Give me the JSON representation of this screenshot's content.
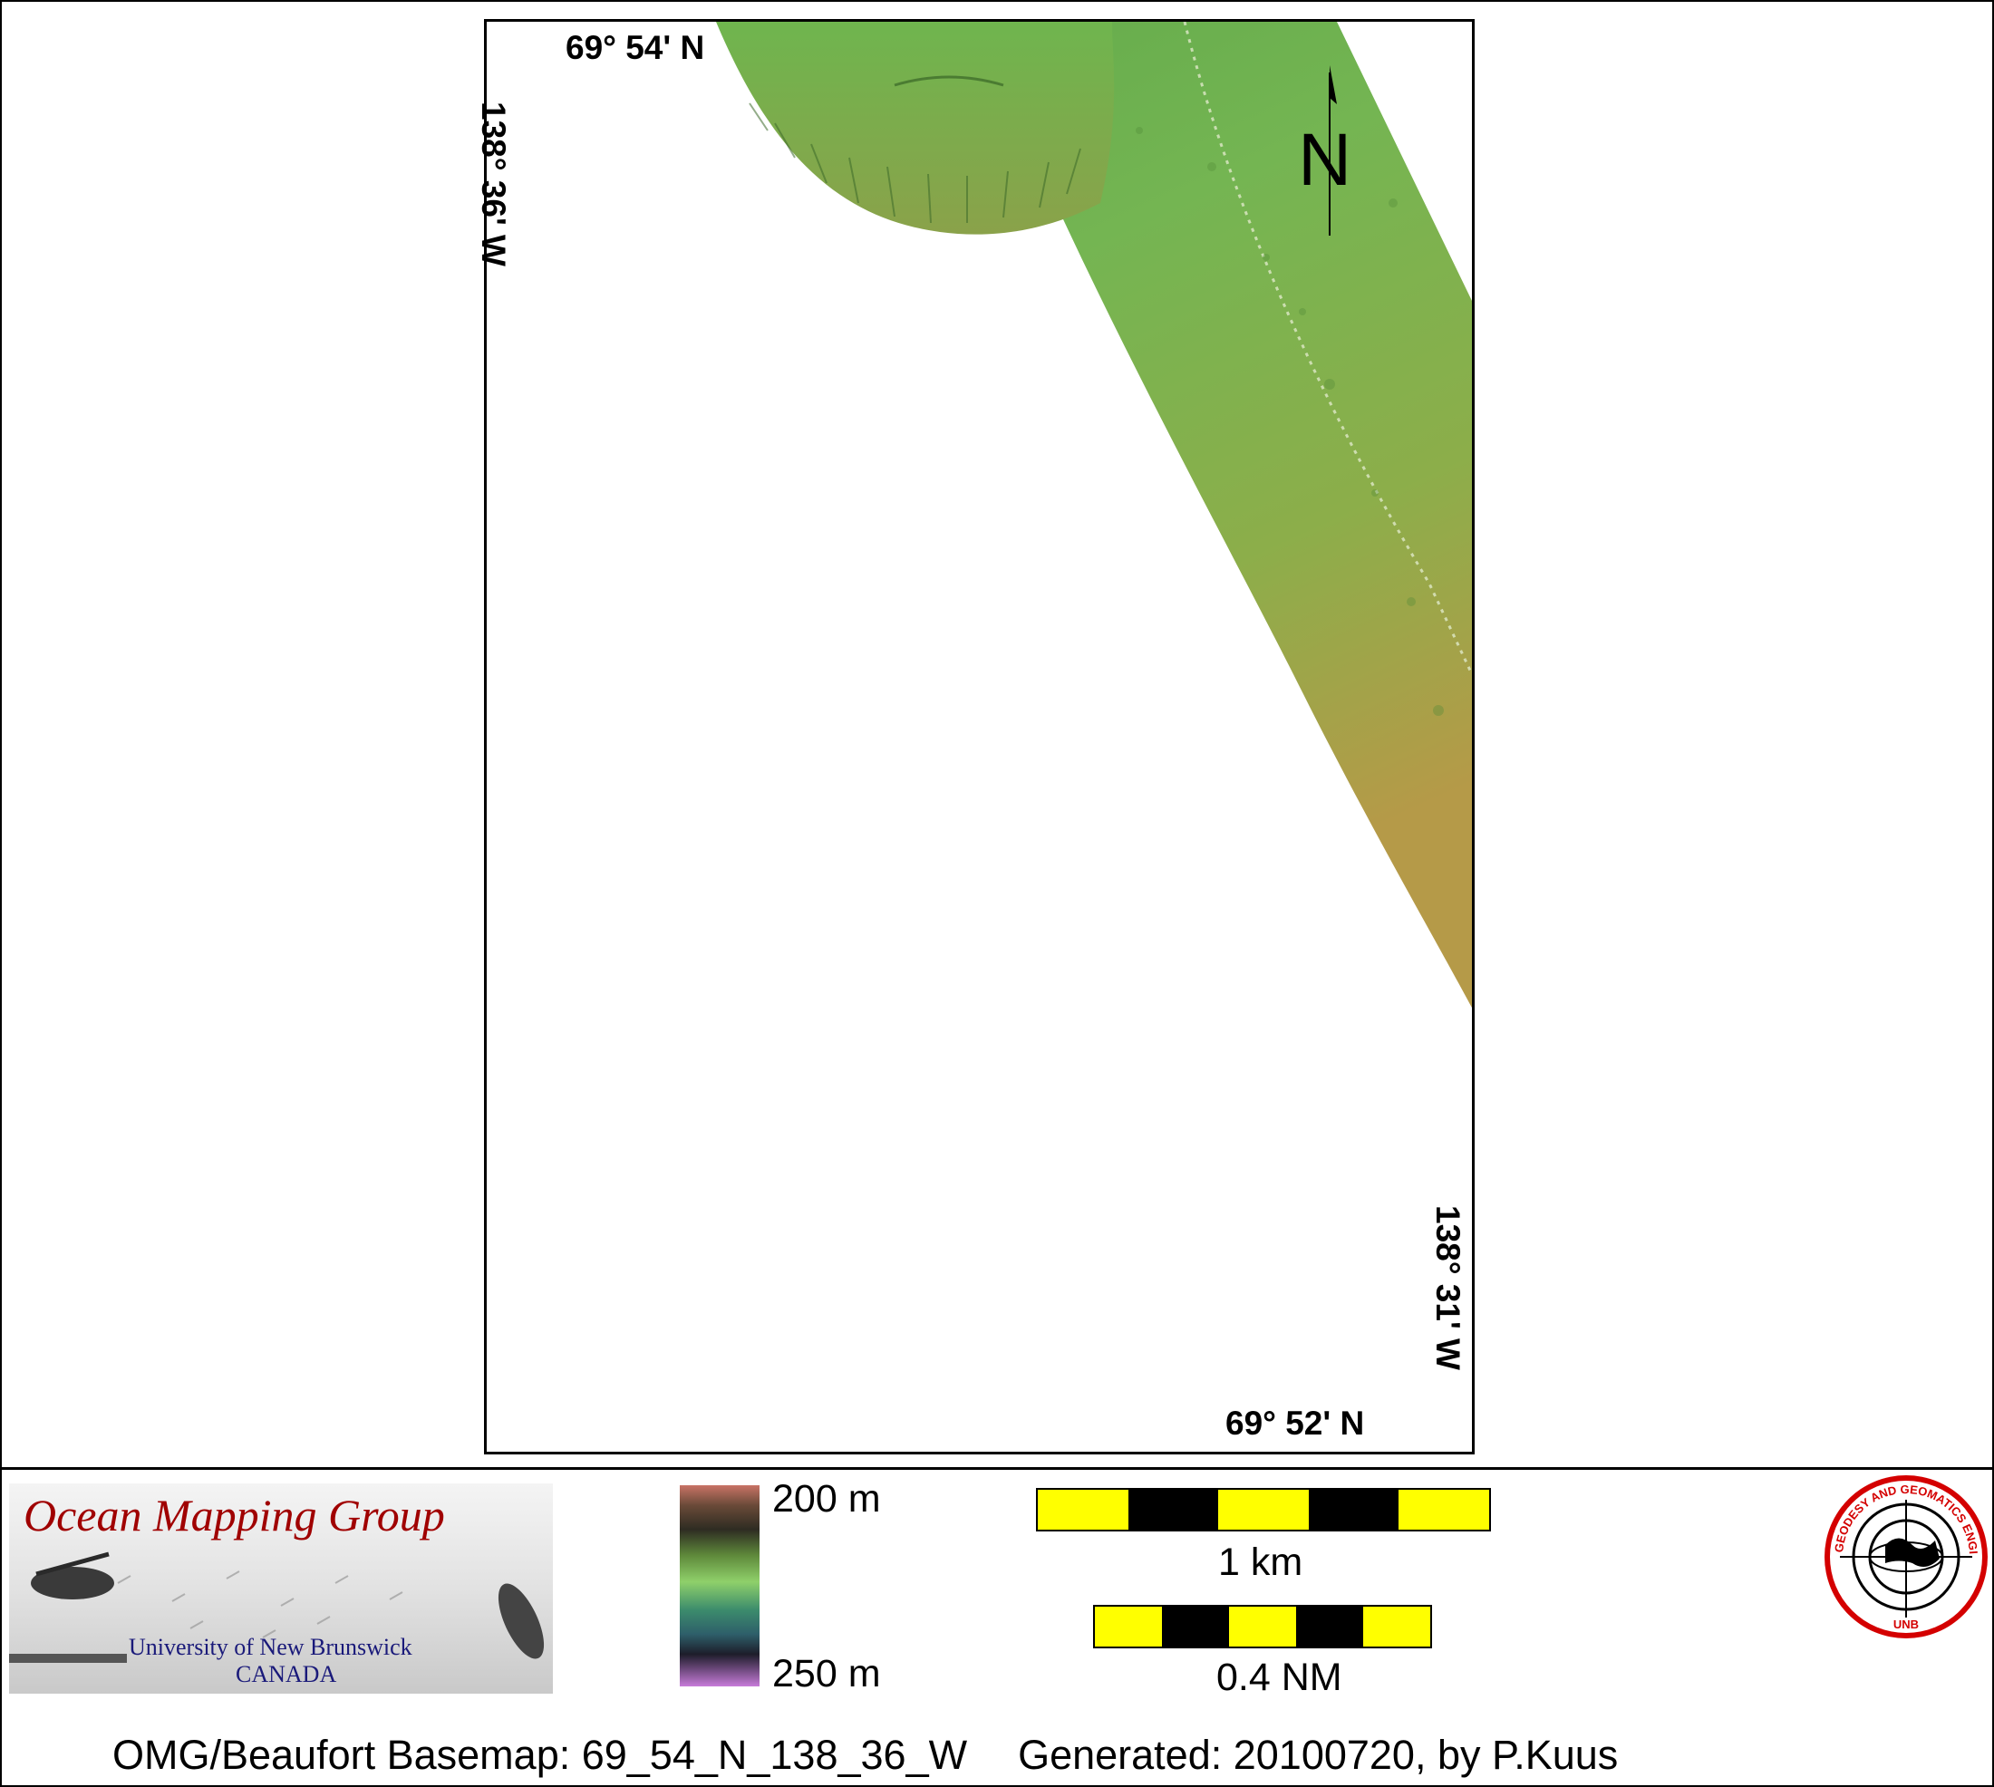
{
  "map": {
    "top_lat": "69° 54' N",
    "bottom_lat": "69° 52' N",
    "left_lon": "138° 36' W",
    "right_lon": "138° 31' W",
    "north_label": "N"
  },
  "legend": {
    "logo": {
      "title": "Ocean Mapping Group",
      "line1": "University of New Brunswick",
      "line2": "CANADA"
    },
    "colorbar": {
      "top": "200 m",
      "bottom": "250 m"
    },
    "scale_km": {
      "label": "1 km",
      "colors": [
        "#ffff00",
        "#000000",
        "#ffff00",
        "#000000",
        "#ffff00"
      ]
    },
    "scale_nm": {
      "label": "0.4 NM",
      "colors": [
        "#ffff00",
        "#000000",
        "#ffff00",
        "#000000",
        "#ffff00"
      ]
    },
    "unb_seal": {
      "ring_text": "GEODESY AND GEOMATICS ENGINEERING",
      "bottom_text": "UNB"
    }
  },
  "footer": {
    "basemap": "OMG/Beaufort Basemap: 69_54_N_138_36_W",
    "generated": "Generated: 20100720, by P.Kuus"
  }
}
